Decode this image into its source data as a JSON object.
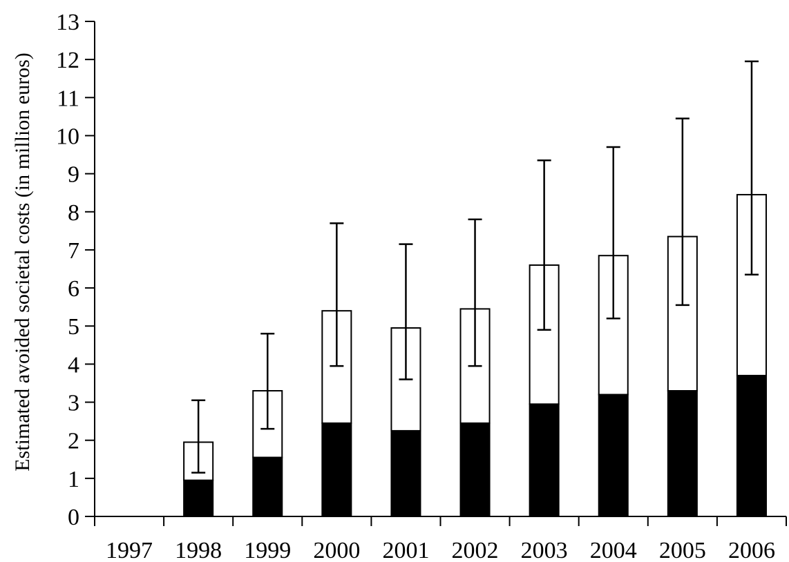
{
  "chart_data": {
    "type": "bar",
    "stacked": true,
    "title": "",
    "xlabel": "",
    "ylabel": "Estimated avoided societal costs (in million euros)",
    "ylim": [
      0,
      13
    ],
    "yticks": [
      0,
      1,
      2,
      3,
      4,
      5,
      6,
      7,
      8,
      9,
      10,
      11,
      12,
      13
    ],
    "grid": false,
    "legend": "none",
    "categories": [
      "1997",
      "1998",
      "1999",
      "2000",
      "2001",
      "2002",
      "2003",
      "2004",
      "2005",
      "2006"
    ],
    "series": [
      {
        "color": "#000000",
        "values": [
          0,
          0.95,
          1.55,
          2.45,
          2.25,
          2.45,
          2.95,
          3.2,
          3.3,
          3.7
        ]
      },
      {
        "color": "#ffffff",
        "values": [
          0,
          1.0,
          1.75,
          2.95,
          2.7,
          3.0,
          3.65,
          3.65,
          4.05,
          4.75
        ]
      }
    ],
    "totals": [
      0,
      1.95,
      3.3,
      5.4,
      4.95,
      5.45,
      6.6,
      6.85,
      7.35,
      8.45
    ],
    "error_bars": {
      "low": [
        null,
        1.15,
        2.3,
        3.95,
        3.6,
        3.95,
        4.9,
        5.2,
        5.55,
        6.35
      ],
      "high": [
        null,
        3.05,
        4.8,
        7.7,
        7.15,
        7.8,
        9.35,
        9.7,
        10.45,
        11.95
      ]
    }
  }
}
